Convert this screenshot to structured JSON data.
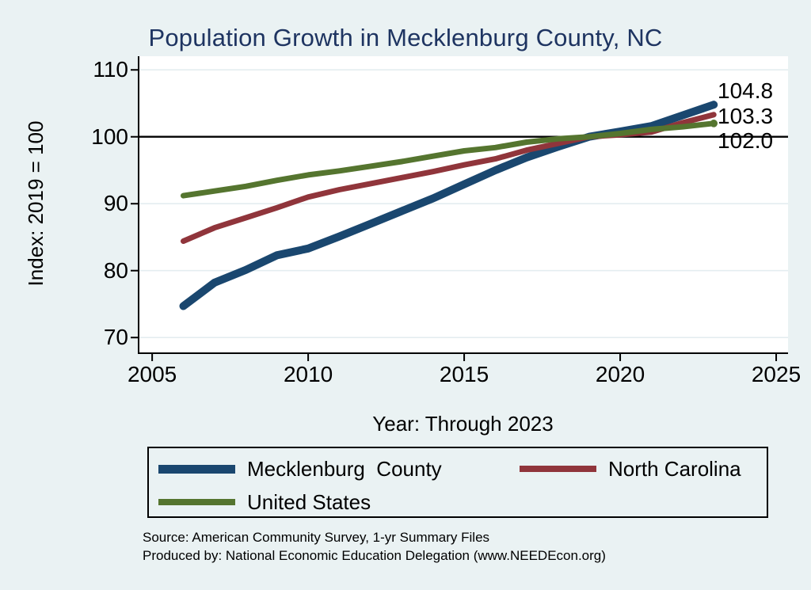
{
  "chart_data": {
    "type": "line",
    "title": "Population Growth in Mecklenburg County, NC",
    "xlabel": "Year: Through 2023",
    "ylabel": "Index: 2019 = 100",
    "x": [
      2006,
      2007,
      2008,
      2009,
      2010,
      2011,
      2012,
      2013,
      2014,
      2015,
      2016,
      2017,
      2018,
      2019,
      2020,
      2021,
      2022,
      2023
    ],
    "series": [
      {
        "name": "Mecklenburg  County",
        "color": "#1a476f",
        "line_width": 10,
        "end_label": "104.8",
        "end_marker": false,
        "values": [
          74.7,
          78.2,
          80.1,
          82.3,
          83.3,
          85.1,
          87.0,
          88.9,
          90.8,
          92.9,
          95.0,
          96.9,
          98.5,
          100.0,
          100.8,
          101.6,
          103.2,
          104.8
        ]
      },
      {
        "name": "North Carolina",
        "color": "#90353b",
        "line_width": 7,
        "end_label": "103.3",
        "end_marker": false,
        "values": [
          84.4,
          86.4,
          87.9,
          89.4,
          91.0,
          92.1,
          93.0,
          93.9,
          94.8,
          95.8,
          96.7,
          98.0,
          99.0,
          100.0,
          100.3,
          100.7,
          102.1,
          103.3
        ]
      },
      {
        "name": "United States",
        "color": "#55752f",
        "line_width": 7,
        "end_label": "102.0",
        "end_marker": true,
        "values": [
          91.2,
          91.9,
          92.6,
          93.5,
          94.3,
          94.9,
          95.6,
          96.3,
          97.1,
          97.9,
          98.4,
          99.2,
          99.7,
          100.0,
          100.5,
          101.1,
          101.5,
          102.0
        ]
      }
    ],
    "xticks": [
      2005,
      2010,
      2015,
      2020,
      2025
    ],
    "yticks": [
      70,
      80,
      90,
      100,
      110
    ],
    "xlim": [
      2004.54,
      2025.38
    ],
    "ylim": [
      67.54,
      112.04
    ],
    "reference_line_y": 100,
    "grid": true,
    "legend_position": "bottom"
  },
  "footer": {
    "source": "Source: American Community Survey, 1-yr Summary Files",
    "produced_by": "Produced by: National Economic Education Delegation (www.NEEDEcon.org)"
  },
  "colors": {
    "background": "#eaf2f3",
    "plot_background": "#ffffff",
    "gridline": "#e4edf0",
    "axis": "#000000",
    "tick": "#000000",
    "reference_line": "#000000",
    "title_text": "#1e3461"
  }
}
